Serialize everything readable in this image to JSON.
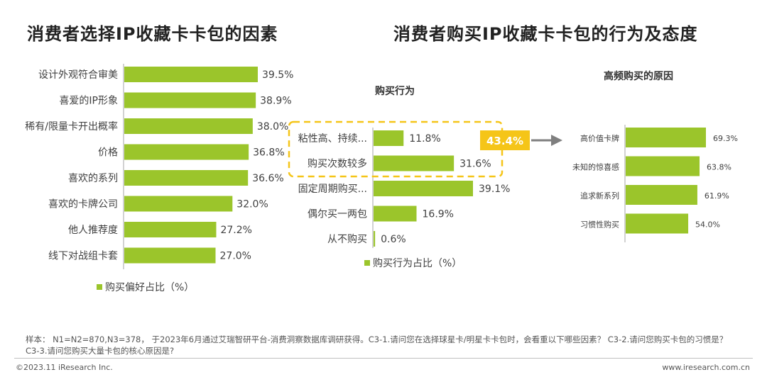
{
  "colors": {
    "bar": "#9bc52b",
    "highlight": "#f5c518",
    "arrow": "#7f7f7f",
    "axis": "#a6a6a6"
  },
  "titles": {
    "left": "消费者选择IP收藏卡卡包的因素",
    "right": "消费者购买IP收藏卡卡包的行为及态度"
  },
  "subtitles": {
    "behavior": "购买行为",
    "reasons": "高频购买的原因"
  },
  "highlight": {
    "value": "43.4%"
  },
  "chart_data": [
    {
      "type": "bar",
      "orientation": "horizontal",
      "title": "消费者选择IP收藏卡卡包的因素",
      "categories": [
        "设计外观符合审美",
        "喜爱的IP形象",
        "稀有/限量卡开出概率",
        "价格",
        "喜欢的系列",
        "喜欢的卡牌公司",
        "他人推荐度",
        "线下对战组卡套"
      ],
      "values": [
        39.5,
        38.9,
        38.0,
        36.8,
        36.6,
        32.0,
        27.2,
        27.0
      ],
      "labels": [
        "39.5%",
        "38.9%",
        "38.0%",
        "36.8%",
        "36.6%",
        "32.0%",
        "27.2%",
        "27.0%"
      ],
      "legend": "购买偏好占比（%）",
      "legend_position": "bottom-left",
      "xlim": [
        0,
        50
      ]
    },
    {
      "type": "bar",
      "orientation": "horizontal",
      "title": "购买行为",
      "categories": [
        "粘性高、持续...",
        "购买次数较多",
        "固定周期购买...",
        "偶尔买一两包",
        "从不购买"
      ],
      "values": [
        11.8,
        31.6,
        39.1,
        16.9,
        0.6
      ],
      "labels": [
        "11.8%",
        "31.6%",
        "39.1%",
        "16.9%",
        "0.6%"
      ],
      "legend": "购买行为占比（%）",
      "legend_position": "bottom-left",
      "highlighted_categories": [
        "粘性高、持续...",
        "购买次数较多"
      ],
      "xlim": [
        0,
        50
      ]
    },
    {
      "type": "bar",
      "orientation": "horizontal",
      "title": "高频购买的原因",
      "categories": [
        "高价值卡牌",
        "未知的惊喜感",
        "追求新系列",
        "习惯性购买"
      ],
      "values": [
        69.3,
        63.8,
        61.9,
        54.0
      ],
      "labels": [
        "69.3%",
        "63.8%",
        "61.9%",
        "54.0%"
      ],
      "xlim": [
        0,
        90
      ]
    }
  ],
  "footnote": "样本： N1=N2=870,N3=378， 于2023年6月通过艾瑞智研平台-消费洞察数据库调研获得。C3-1.请问您在选择球星卡/明星卡卡包时，会看重以下哪些因素？ C3-2.请问您购买卡包的习惯是？ C3-3.请问您购买大量卡包的核心原因是?",
  "copyright": "©2023.11 iResearch Inc.",
  "website": "www.iresearch.com.cn"
}
